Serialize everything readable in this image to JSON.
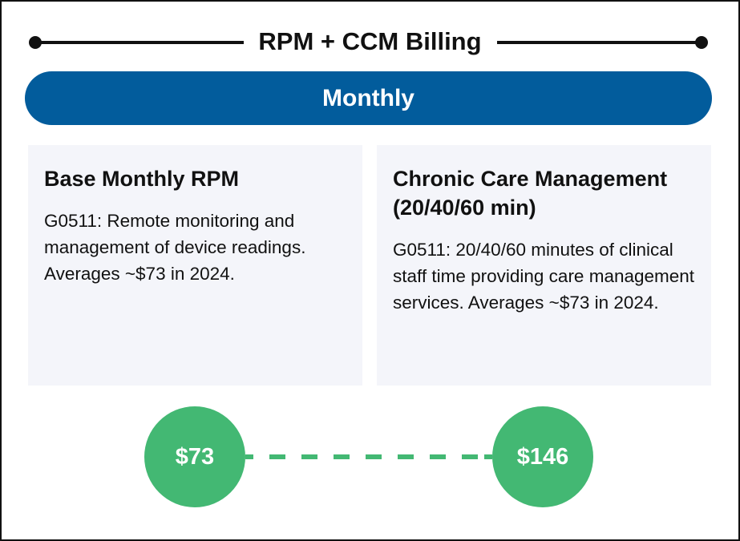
{
  "title": "RPM + CCM Billing",
  "period": "Monthly",
  "cards": [
    {
      "heading": "Base Monthly RPM",
      "body": "G0511: Remote monitoring and management of device readings. Averages ~$73 in 2024."
    },
    {
      "heading": "Chronic Care Management (20/40/60 min)",
      "body": "G0511: 20/40/60 minutes of clinical staff time providing care management services. Averages ~$73 in 2024."
    }
  ],
  "totals": [
    "$73",
    "$146"
  ],
  "colors": {
    "blue": "#025C9C",
    "green": "#43B873",
    "card": "#F4F5FA"
  }
}
